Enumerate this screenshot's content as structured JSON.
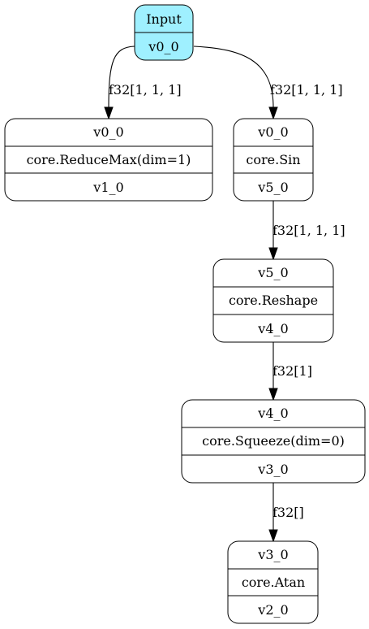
{
  "diagram": {
    "nodes": [
      {
        "id": "input",
        "kind": "input",
        "rows": [
          "Input",
          "v0_0"
        ]
      },
      {
        "id": "reducemax",
        "kind": "op",
        "rows": [
          "v0_0",
          "core.ReduceMax(dim=1)",
          "v1_0"
        ]
      },
      {
        "id": "sin",
        "kind": "op",
        "rows": [
          "v0_0",
          "core.Sin",
          "v5_0"
        ]
      },
      {
        "id": "reshape",
        "kind": "op",
        "rows": [
          "v5_0",
          "core.Reshape",
          "v4_0"
        ]
      },
      {
        "id": "squeeze",
        "kind": "op",
        "rows": [
          "v4_0",
          "core.Squeeze(dim=0)",
          "v3_0"
        ]
      },
      {
        "id": "atan",
        "kind": "op",
        "rows": [
          "v3_0",
          "core.Atan",
          "v2_0"
        ]
      }
    ],
    "edges": [
      {
        "from": "input",
        "to": "reducemax",
        "label": "f32[1, 1, 1]"
      },
      {
        "from": "input",
        "to": "sin",
        "label": "f32[1, 1, 1]"
      },
      {
        "from": "sin",
        "to": "reshape",
        "label": "f32[1, 1, 1]"
      },
      {
        "from": "reshape",
        "to": "squeeze",
        "label": "f32[1]"
      },
      {
        "from": "squeeze",
        "to": "atan",
        "label": "f32[]"
      }
    ],
    "colors": {
      "input_fill": "#9ff0ff",
      "node_fill": "#ffffff",
      "stroke": "#000000"
    }
  }
}
